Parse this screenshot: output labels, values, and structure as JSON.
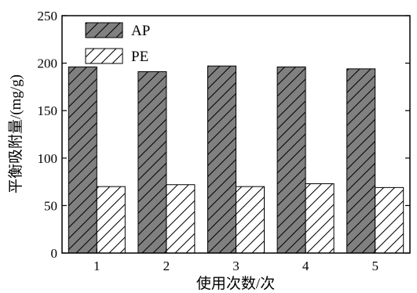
{
  "chart_data": {
    "type": "bar",
    "title": "",
    "xlabel": "使用次数/次",
    "ylabel": "平衡吸附量/(mg/g)",
    "categories": [
      "1",
      "2",
      "3",
      "4",
      "5"
    ],
    "ylim": [
      0,
      250
    ],
    "yticks": [
      0,
      50,
      100,
      150,
      200,
      250
    ],
    "legend_position": "top-left",
    "grid": false,
    "series": [
      {
        "name": "AP",
        "values": [
          196,
          191,
          197,
          196,
          194
        ],
        "fill": "#808080",
        "hatch": "diagonal"
      },
      {
        "name": "PE",
        "values": [
          70,
          72,
          70,
          73,
          69
        ],
        "fill": "#ffffff",
        "hatch": "diagonal"
      }
    ]
  }
}
